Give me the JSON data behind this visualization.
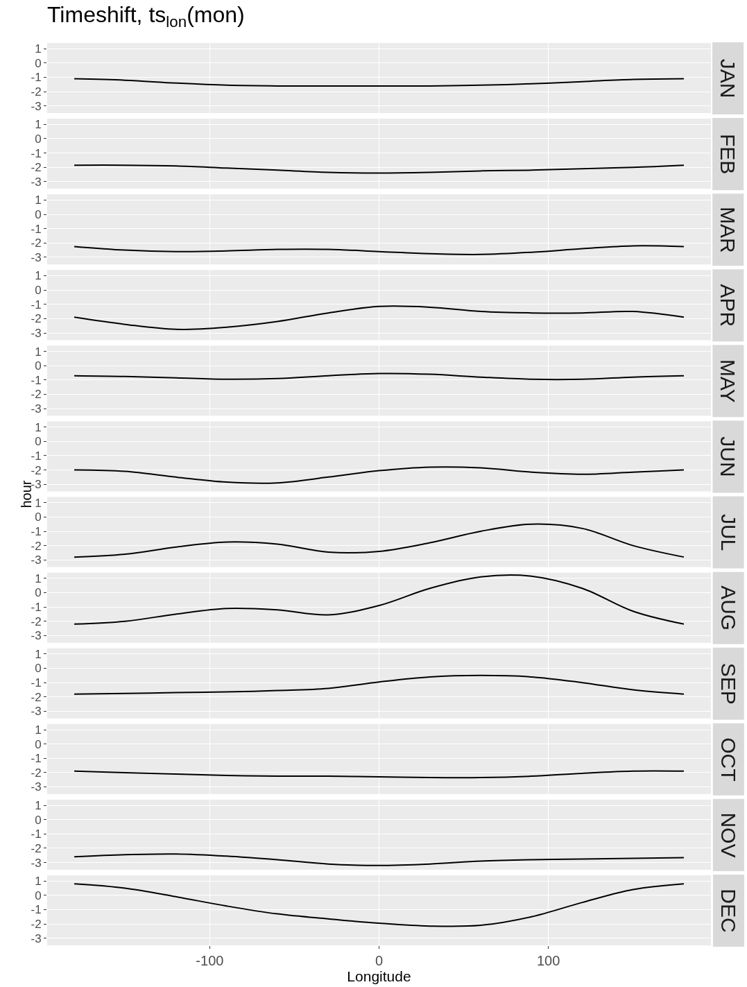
{
  "chart_data": [
    {
      "type": "line",
      "title": "Timeshift, ts$_{lon}$(mon)",
      "subtitle": "JAN",
      "x": [
        -180,
        -150,
        -120,
        -90,
        -60,
        -30,
        0,
        30,
        60,
        90,
        120,
        150,
        180
      ],
      "series": [
        {
          "color": "#000000",
          "values": [
            -1.1,
            -1.2,
            -1.4,
            -1.55,
            -1.6,
            -1.6,
            -1.6,
            -1.6,
            -1.55,
            -1.45,
            -1.3,
            -1.15,
            -1.1
          ]
        }
      ],
      "xlim": [
        -196,
        196
      ],
      "xticks": [
        -100,
        0,
        100
      ],
      "ylim": [
        -3.5,
        1.4
      ],
      "yticks": [
        -3,
        -2,
        -1,
        0,
        1
      ],
      "grid": true,
      "tick_labels": "y"
    },
    {
      "type": "line",
      "subtitle": "FEB",
      "x": [
        -180,
        -150,
        -120,
        -90,
        -60,
        -30,
        0,
        30,
        60,
        90,
        120,
        150,
        180
      ],
      "series": [
        {
          "color": "#000000",
          "values": [
            -1.85,
            -1.85,
            -1.9,
            -2.05,
            -2.2,
            -2.35,
            -2.4,
            -2.35,
            -2.25,
            -2.2,
            -2.1,
            -2.0,
            -1.85
          ]
        }
      ],
      "xlim": [
        -196,
        196
      ],
      "xticks": [
        -100,
        0,
        100
      ],
      "ylim": [
        -3.5,
        1.4
      ],
      "yticks": [
        -3,
        -2,
        -1,
        0,
        1
      ],
      "grid": true,
      "tick_labels": "y"
    },
    {
      "type": "line",
      "subtitle": "MAR",
      "x": [
        -180,
        -150,
        -120,
        -90,
        -60,
        -30,
        0,
        30,
        60,
        90,
        120,
        150,
        180
      ],
      "series": [
        {
          "color": "#000000",
          "values": [
            -2.25,
            -2.5,
            -2.6,
            -2.55,
            -2.45,
            -2.45,
            -2.6,
            -2.75,
            -2.8,
            -2.65,
            -2.4,
            -2.2,
            -2.25
          ]
        }
      ],
      "xlim": [
        -196,
        196
      ],
      "xticks": [
        -100,
        0,
        100
      ],
      "ylim": [
        -3.5,
        1.4
      ],
      "yticks": [
        -3,
        -2,
        -1,
        0,
        1
      ],
      "grid": true,
      "tick_labels": "y"
    },
    {
      "type": "line",
      "subtitle": "APR",
      "x": [
        -180,
        -150,
        -120,
        -90,
        -60,
        -30,
        0,
        30,
        60,
        90,
        120,
        150,
        180
      ],
      "series": [
        {
          "color": "#000000",
          "values": [
            -1.9,
            -2.4,
            -2.75,
            -2.6,
            -2.2,
            -1.6,
            -1.15,
            -1.2,
            -1.5,
            -1.6,
            -1.6,
            -1.5,
            -1.9
          ]
        }
      ],
      "xlim": [
        -196,
        196
      ],
      "xticks": [
        -100,
        0,
        100
      ],
      "ylim": [
        -3.5,
        1.4
      ],
      "yticks": [
        -3,
        -2,
        -1,
        0,
        1
      ],
      "grid": true,
      "tick_labels": "y"
    },
    {
      "type": "line",
      "subtitle": "MAY",
      "x": [
        -180,
        -150,
        -120,
        -90,
        -60,
        -30,
        0,
        30,
        60,
        90,
        120,
        150,
        180
      ],
      "series": [
        {
          "color": "#000000",
          "values": [
            -0.7,
            -0.75,
            -0.85,
            -0.95,
            -0.9,
            -0.7,
            -0.55,
            -0.6,
            -0.8,
            -0.95,
            -0.95,
            -0.8,
            -0.7
          ]
        }
      ],
      "xlim": [
        -196,
        196
      ],
      "xticks": [
        -100,
        0,
        100
      ],
      "ylim": [
        -3.5,
        1.4
      ],
      "yticks": [
        -3,
        -2,
        -1,
        0,
        1
      ],
      "grid": true,
      "tick_labels": "y"
    },
    {
      "type": "line",
      "subtitle": "JUN",
      "ylabel": "hour",
      "x": [
        -180,
        -150,
        -120,
        -90,
        -60,
        -30,
        0,
        30,
        60,
        90,
        120,
        150,
        180
      ],
      "series": [
        {
          "color": "#000000",
          "values": [
            -2.0,
            -2.1,
            -2.5,
            -2.85,
            -2.9,
            -2.5,
            -2.05,
            -1.8,
            -1.85,
            -2.15,
            -2.3,
            -2.15,
            -2.0
          ]
        }
      ],
      "xlim": [
        -196,
        196
      ],
      "xticks": [
        -100,
        0,
        100
      ],
      "ylim": [
        -3.5,
        1.4
      ],
      "yticks": [
        -3,
        -2,
        -1,
        0,
        1
      ],
      "grid": true,
      "tick_labels": "y"
    },
    {
      "type": "line",
      "subtitle": "JUL",
      "x": [
        -180,
        -150,
        -120,
        -90,
        -60,
        -30,
        0,
        30,
        60,
        90,
        120,
        150,
        180
      ],
      "series": [
        {
          "color": "#000000",
          "values": [
            -2.8,
            -2.6,
            -2.1,
            -1.75,
            -1.9,
            -2.45,
            -2.4,
            -1.8,
            -1.0,
            -0.5,
            -0.8,
            -2.0,
            -2.8
          ]
        }
      ],
      "xlim": [
        -196,
        196
      ],
      "xticks": [
        -100,
        0,
        100
      ],
      "ylim": [
        -3.5,
        1.4
      ],
      "yticks": [
        -3,
        -2,
        -1,
        0,
        1
      ],
      "grid": true,
      "tick_labels": "y"
    },
    {
      "type": "line",
      "subtitle": "AUG",
      "x": [
        -180,
        -150,
        -120,
        -90,
        -60,
        -30,
        0,
        30,
        60,
        90,
        120,
        150,
        180
      ],
      "series": [
        {
          "color": "#000000",
          "values": [
            -2.2,
            -2.0,
            -1.5,
            -1.1,
            -1.2,
            -1.55,
            -0.9,
            0.3,
            1.1,
            1.15,
            0.3,
            -1.3,
            -2.2
          ]
        }
      ],
      "xlim": [
        -196,
        196
      ],
      "xticks": [
        -100,
        0,
        100
      ],
      "ylim": [
        -3.5,
        1.4
      ],
      "yticks": [
        -3,
        -2,
        -1,
        0,
        1
      ],
      "grid": true,
      "tick_labels": "y"
    },
    {
      "type": "line",
      "subtitle": "SEP",
      "x": [
        -180,
        -150,
        -120,
        -90,
        -60,
        -30,
        0,
        30,
        60,
        90,
        120,
        150,
        180
      ],
      "series": [
        {
          "color": "#000000",
          "values": [
            -1.8,
            -1.75,
            -1.7,
            -1.65,
            -1.55,
            -1.4,
            -0.95,
            -0.6,
            -0.5,
            -0.6,
            -1.0,
            -1.5,
            -1.8
          ]
        }
      ],
      "xlim": [
        -196,
        196
      ],
      "xticks": [
        -100,
        0,
        100
      ],
      "ylim": [
        -3.5,
        1.4
      ],
      "yticks": [
        -3,
        -2,
        -1,
        0,
        1
      ],
      "grid": true,
      "tick_labels": "y"
    },
    {
      "type": "line",
      "subtitle": "OCT",
      "x": [
        -180,
        -150,
        -120,
        -90,
        -60,
        -30,
        0,
        30,
        60,
        90,
        120,
        150,
        180
      ],
      "series": [
        {
          "color": "#000000",
          "values": [
            -1.9,
            -2.0,
            -2.1,
            -2.2,
            -2.25,
            -2.25,
            -2.3,
            -2.35,
            -2.35,
            -2.25,
            -2.05,
            -1.9,
            -1.9
          ]
        }
      ],
      "xlim": [
        -196,
        196
      ],
      "xticks": [
        -100,
        0,
        100
      ],
      "ylim": [
        -3.5,
        1.4
      ],
      "yticks": [
        -3,
        -2,
        -1,
        0,
        1
      ],
      "grid": true,
      "tick_labels": "y"
    },
    {
      "type": "line",
      "subtitle": "NOV",
      "x": [
        -180,
        -150,
        -120,
        -90,
        -60,
        -30,
        0,
        30,
        60,
        90,
        120,
        150,
        180
      ],
      "series": [
        {
          "color": "#000000",
          "values": [
            -2.6,
            -2.45,
            -2.4,
            -2.55,
            -2.8,
            -3.1,
            -3.2,
            -3.1,
            -2.9,
            -2.8,
            -2.75,
            -2.7,
            -2.65
          ]
        }
      ],
      "xlim": [
        -196,
        196
      ],
      "xticks": [
        -100,
        0,
        100
      ],
      "ylim": [
        -3.5,
        1.4
      ],
      "yticks": [
        -3,
        -2,
        -1,
        0,
        1
      ],
      "grid": true,
      "tick_labels": "y"
    },
    {
      "type": "line",
      "subtitle": "DEC",
      "xlabel": "Longitude",
      "x": [
        -180,
        -150,
        -120,
        -90,
        -60,
        -30,
        0,
        30,
        60,
        90,
        120,
        150,
        180
      ],
      "series": [
        {
          "color": "#000000",
          "values": [
            0.8,
            0.5,
            -0.1,
            -0.75,
            -1.3,
            -1.65,
            -1.95,
            -2.15,
            -2.1,
            -1.5,
            -0.5,
            0.4,
            0.8
          ]
        }
      ],
      "xlim": [
        -196,
        196
      ],
      "xticks": [
        -100,
        0,
        100
      ],
      "ylim": [
        -3.5,
        1.4
      ],
      "yticks": [
        -3,
        -2,
        -1,
        0,
        1
      ],
      "grid": true
    }
  ]
}
